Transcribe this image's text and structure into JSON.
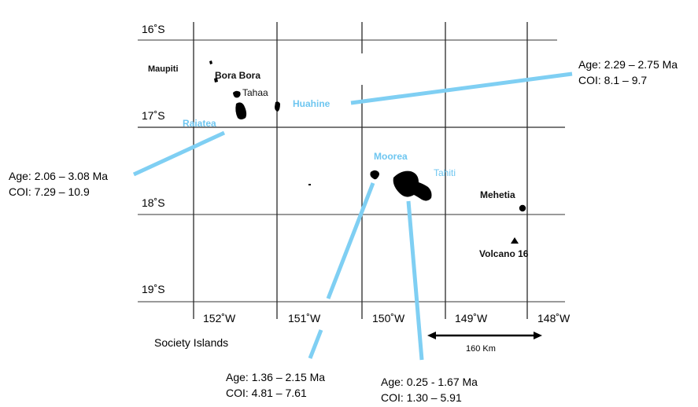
{
  "map": {
    "latitude_labels": [
      "16˚S",
      "17˚S",
      "18˚S",
      "19˚S"
    ],
    "longitude_labels": [
      "152˚W",
      "151˚W",
      "150˚W",
      "149˚W",
      "148˚W"
    ],
    "caption": "Society Islands",
    "scale_bar_label": "160 Km",
    "islands": {
      "maupiti": "Maupiti",
      "bora_bora": "Bora Bora",
      "tahaa": "Tahaa",
      "huahine": "Huahine",
      "raiatea": "Raiatea",
      "moorea": "Moorea",
      "tahiti": "Tahiti",
      "mehetia": "Mehetia",
      "volcano16": "Volcano 16"
    },
    "annotations": {
      "huahine": {
        "age": "Age: 2.29 – 2.75 Ma",
        "coi": "COI: 8.1 – 9.7"
      },
      "raiatea": {
        "age": "Age: 2.06 – 3.08 Ma",
        "coi": "COI: 7.29 – 10.9"
      },
      "moorea": {
        "age": "Age: 1.36 – 2.15 Ma",
        "coi": "COI: 4.81 – 7.61"
      },
      "tahiti": {
        "age": "Age: 0.25 - 1.67 Ma",
        "coi": "COI: 1.30 – 5.91"
      }
    },
    "colors": {
      "grid": "#2a2a2a",
      "grid_light": "#9a9a9a",
      "island": "#000000",
      "callout_line": "#7fcff3",
      "callout_text": "#6ec6f0"
    }
  }
}
